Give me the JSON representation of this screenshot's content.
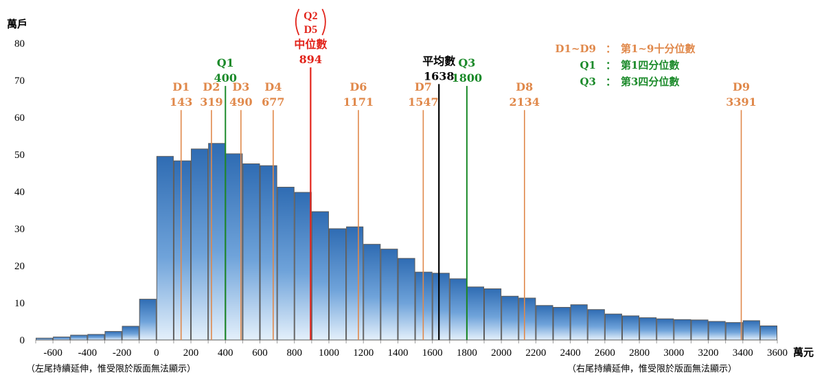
{
  "chart_data": {
    "type": "bar",
    "ylabel": "萬戶",
    "xlabel": "萬元",
    "ylim": [
      0,
      80
    ],
    "xlim": [
      -700,
      3600
    ],
    "bin_width": 100,
    "y_ticks": [
      0,
      10,
      20,
      30,
      40,
      50,
      60,
      70,
      80
    ],
    "x_ticks": [
      -600,
      -400,
      -200,
      0,
      200,
      400,
      600,
      800,
      1000,
      1200,
      1400,
      1600,
      1800,
      2000,
      2200,
      2400,
      2600,
      2800,
      3000,
      3200,
      3400,
      3600
    ],
    "bins": [
      {
        "start": -700,
        "value": 0.5
      },
      {
        "start": -600,
        "value": 0.8
      },
      {
        "start": -500,
        "value": 1.3
      },
      {
        "start": -400,
        "value": 1.5
      },
      {
        "start": -300,
        "value": 2.3
      },
      {
        "start": -200,
        "value": 3.7
      },
      {
        "start": -100,
        "value": 11.0
      },
      {
        "start": 0,
        "value": 49.5
      },
      {
        "start": 100,
        "value": 48.3
      },
      {
        "start": 200,
        "value": 51.5
      },
      {
        "start": 300,
        "value": 53.0
      },
      {
        "start": 400,
        "value": 50.2
      },
      {
        "start": 500,
        "value": 47.5
      },
      {
        "start": 600,
        "value": 47.0
      },
      {
        "start": 700,
        "value": 41.2
      },
      {
        "start": 800,
        "value": 39.8
      },
      {
        "start": 900,
        "value": 34.6
      },
      {
        "start": 1000,
        "value": 30.0
      },
      {
        "start": 1100,
        "value": 30.5
      },
      {
        "start": 1200,
        "value": 25.8
      },
      {
        "start": 1300,
        "value": 24.5
      },
      {
        "start": 1400,
        "value": 22.0
      },
      {
        "start": 1500,
        "value": 18.3
      },
      {
        "start": 1600,
        "value": 18.0
      },
      {
        "start": 1700,
        "value": 16.5
      },
      {
        "start": 1800,
        "value": 14.3
      },
      {
        "start": 1900,
        "value": 13.8
      },
      {
        "start": 2000,
        "value": 11.8
      },
      {
        "start": 2100,
        "value": 11.3
      },
      {
        "start": 2200,
        "value": 9.3
      },
      {
        "start": 2300,
        "value": 8.8
      },
      {
        "start": 2400,
        "value": 9.5
      },
      {
        "start": 2500,
        "value": 8.2
      },
      {
        "start": 2600,
        "value": 7.0
      },
      {
        "start": 2700,
        "value": 6.5
      },
      {
        "start": 2800,
        "value": 6.0
      },
      {
        "start": 2900,
        "value": 5.7
      },
      {
        "start": 3000,
        "value": 5.5
      },
      {
        "start": 3100,
        "value": 5.4
      },
      {
        "start": 3200,
        "value": 5.0
      },
      {
        "start": 3300,
        "value": 4.7
      },
      {
        "start": 3400,
        "value": 5.2
      },
      {
        "start": 3500,
        "value": 3.8
      }
    ],
    "markers": [
      {
        "id": "D1",
        "label": "D1",
        "value": 143,
        "color": "#E0884A",
        "top": 62
      },
      {
        "id": "D2",
        "label": "D2",
        "value": 319,
        "color": "#E0884A",
        "top": 62
      },
      {
        "id": "D3",
        "label": "D3",
        "value": 490,
        "color": "#E0884A",
        "top": 62
      },
      {
        "id": "D4",
        "label": "D4",
        "value": 677,
        "color": "#E0884A",
        "top": 62
      },
      {
        "id": "D6",
        "label": "D6",
        "value": 1171,
        "color": "#E0884A",
        "top": 62
      },
      {
        "id": "D7",
        "label": "D7",
        "value": 1547,
        "color": "#E0884A",
        "top": 62
      },
      {
        "id": "D8",
        "label": "D8",
        "value": 2134,
        "color": "#E0884A",
        "top": 62
      },
      {
        "id": "D9",
        "label": "D9",
        "value": 3391,
        "color": "#E0884A",
        "top": 62
      },
      {
        "id": "Q1",
        "label": "Q1",
        "value": 400,
        "color": "#1B8A2A",
        "top": 68.5
      },
      {
        "id": "Q3",
        "label": "Q3",
        "value": 1800,
        "color": "#1B8A2A",
        "top": 68.5
      },
      {
        "id": "median",
        "label": "中位數",
        "value": 894,
        "color": "#E2231A",
        "top": 73.5
      },
      {
        "id": "mean",
        "label": "平均數",
        "value": 1638,
        "color": "#000000",
        "top": 69.0
      }
    ],
    "median_tags": [
      "Q2",
      "D5"
    ],
    "legend": [
      {
        "key": "D1~D9",
        "desc": "第1~9十分位數",
        "color": "#E0884A"
      },
      {
        "key": "Q1",
        "desc": "第1四分位數",
        "color": "#1B8A2A"
      },
      {
        "key": "Q3",
        "desc": "第3四分位數",
        "color": "#1B8A2A"
      }
    ],
    "legend_sep": "："
  },
  "notes": {
    "left_tail": "（左尾持續延伸，惟受限於版面無法顯示）",
    "right_tail": "（右尾持續延伸，惟受限於版面無法顯示）"
  }
}
